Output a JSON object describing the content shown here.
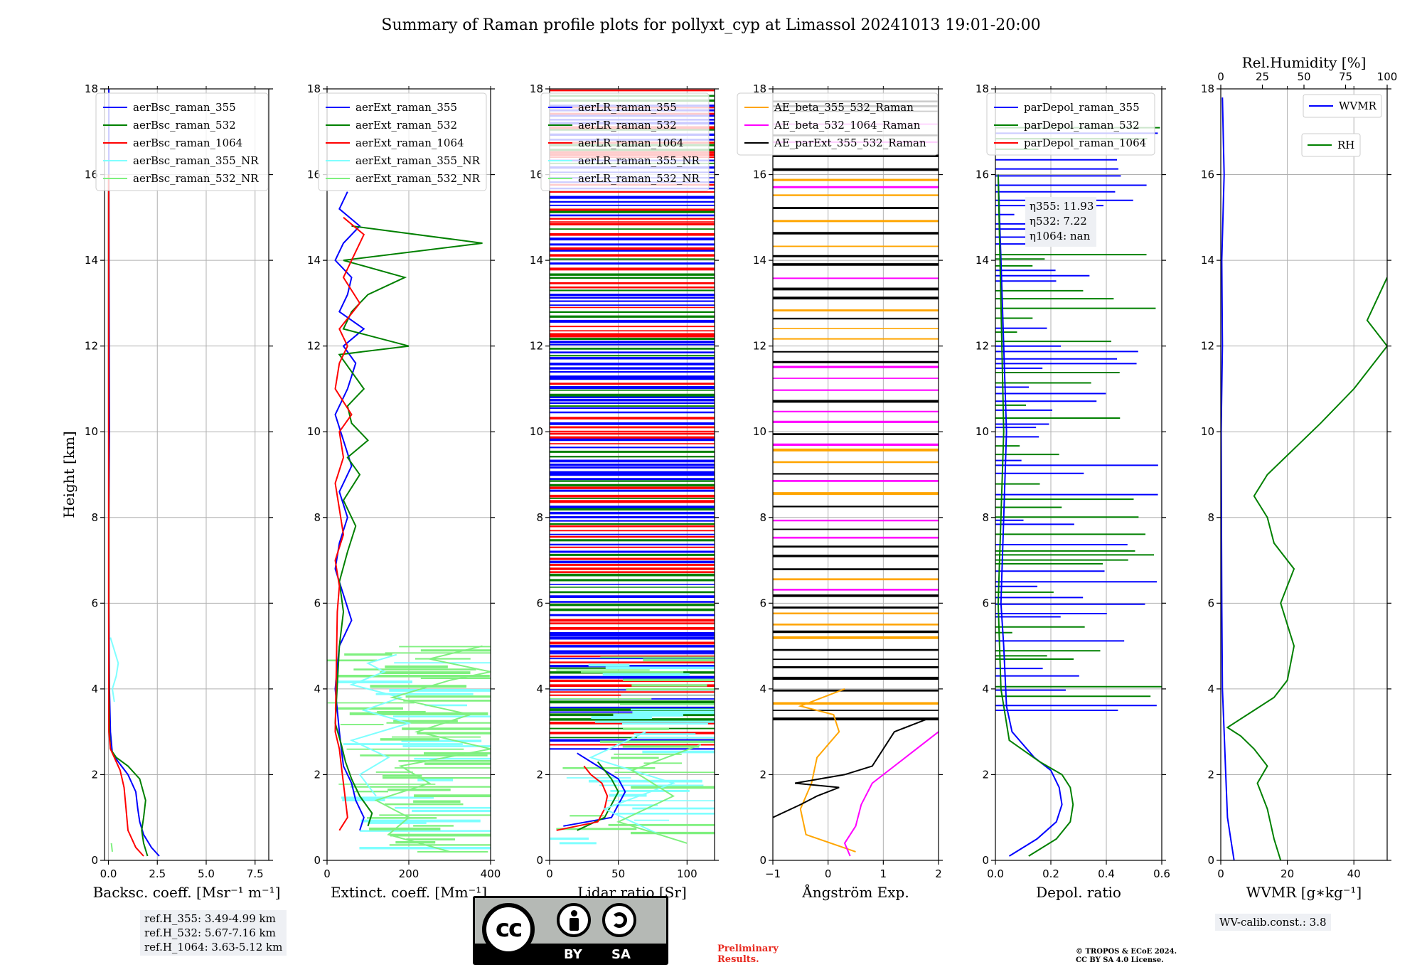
{
  "figure_title": "Summary of Raman profile plots for pollyxt_cyp at Limassol 20241013 19:01-20:00",
  "ref_heights": [
    "ref.H_355: 3.49-4.99 km",
    "ref.H_532: 5.67-7.16 km",
    "ref.H_1064: 3.63-5.12 km"
  ],
  "wv_calib": "WV-calib.const.: 3.8",
  "preliminary": [
    "Preliminary",
    "Results."
  ],
  "copyright": [
    "© TROPOS & ECoE 2024.",
    "CC BY SA 4.0 License."
  ],
  "license_badge": {
    "cc": "cc",
    "by": "BY",
    "sa": "SA"
  },
  "colors": {
    "blue": "#0000ff",
    "green": "#008000",
    "red": "#ff0000",
    "cyan": "#7fffff",
    "lightgreen": "#7ff07f",
    "orange": "#ffa500",
    "magenta": "#ff00ff",
    "black": "#000000"
  },
  "chart_data": [
    {
      "type": "line",
      "id": "bsc",
      "xlabel": "Backsc. coeff. [Msr$^{-1}$ m$^{-1}$]",
      "xlabel_text": "Backsc. coeff. [Msr⁻¹ m⁻¹]",
      "ylabel": "Height [km]",
      "xlim": [
        -0.2,
        8.2
      ],
      "ylim": [
        0,
        18
      ],
      "xticks": [
        0,
        2.5,
        5,
        7.5
      ],
      "xticklabels": [
        "0.0",
        "2.5",
        "5.0",
        "7.5"
      ],
      "yticks": [
        0,
        2,
        4,
        6,
        8,
        10,
        12,
        14,
        16,
        18
      ],
      "legend": "top-left",
      "series": [
        {
          "name": "aerBsc_raman_355",
          "color": "#0000ff",
          "x": [
            2.6,
            2.2,
            1.8,
            1.6,
            1.5,
            1.4,
            1.0,
            0.5,
            0.2,
            0.1,
            0.05,
            0.02,
            0.02,
            0.05,
            0.04,
            0.03,
            0.02,
            0.02
          ],
          "y": [
            0.1,
            0.3,
            0.6,
            0.9,
            1.2,
            1.6,
            2.0,
            2.3,
            2.5,
            3.0,
            4.0,
            6.0,
            8.0,
            10.0,
            12.0,
            14.0,
            16.0,
            18.0
          ]
        },
        {
          "name": "aerBsc_raman_532",
          "color": "#008000",
          "x": [
            2.0,
            1.8,
            1.7,
            1.8,
            1.9,
            1.6,
            1.0,
            0.4,
            0.1,
            0.05,
            0.02,
            0.02,
            0.01,
            0.01
          ],
          "y": [
            0.1,
            0.4,
            0.7,
            1.0,
            1.4,
            1.9,
            2.2,
            2.4,
            2.6,
            3.0,
            5.0,
            8.0,
            12.0,
            16.0
          ]
        },
        {
          "name": "aerBsc_raman_1064",
          "color": "#ff0000",
          "x": [
            1.8,
            1.4,
            1.0,
            0.9,
            0.8,
            0.6,
            0.3,
            0.1,
            0.02,
            0.01,
            0.01
          ],
          "y": [
            0.1,
            0.3,
            0.7,
            1.2,
            1.7,
            2.1,
            2.4,
            2.6,
            3.0,
            6.0,
            16.0
          ]
        },
        {
          "name": "aerBsc_raman_355_NR",
          "color": "#7fffff",
          "x": [
            0.3,
            0.2,
            0.4,
            0.5,
            0.3,
            0.1
          ],
          "y": [
            3.7,
            4.0,
            4.3,
            4.6,
            4.9,
            5.2
          ]
        },
        {
          "name": "aerBsc_raman_532_NR",
          "color": "#7ff07f",
          "x": [
            0.2,
            0.15
          ],
          "y": [
            0.2,
            0.4
          ]
        }
      ]
    },
    {
      "type": "line",
      "id": "ext",
      "xlabel_text": "Extinct. coeff. [Mm⁻¹]",
      "xlim": [
        0,
        400
      ],
      "ylim": [
        0,
        18
      ],
      "xticks": [
        0,
        200,
        400
      ],
      "xticklabels": [
        "0",
        "200",
        "400"
      ],
      "yticks": [
        0,
        2,
        4,
        6,
        8,
        10,
        12,
        14,
        16,
        18
      ],
      "legend": "top-left",
      "series": [
        {
          "name": "aerExt_raman_355",
          "color": "#0000ff",
          "x": [
            80,
            90,
            70,
            60,
            40,
            35,
            30,
            20,
            30,
            60,
            40,
            20,
            30,
            50,
            30,
            60,
            40,
            20,
            50,
            70,
            40,
            90,
            30,
            50,
            60,
            20,
            40,
            80,
            30,
            50
          ],
          "y": [
            0.7,
            1.0,
            1.4,
            1.8,
            2.2,
            2.6,
            3.0,
            4.0,
            5.0,
            5.6,
            6.2,
            6.8,
            7.4,
            8.0,
            8.6,
            9.2,
            9.8,
            10.4,
            11.0,
            11.6,
            12.0,
            12.4,
            12.8,
            13.2,
            13.6,
            14.0,
            14.4,
            14.8,
            15.2,
            15.6
          ]
        },
        {
          "name": "aerExt_raman_532",
          "color": "#008000",
          "x": [
            100,
            110,
            80,
            60,
            45,
            35,
            20,
            30,
            40,
            30,
            50,
            70,
            40,
            80,
            50,
            100,
            60,
            50,
            90,
            60,
            30,
            200,
            40,
            60,
            100,
            190,
            40,
            380,
            60
          ],
          "y": [
            0.8,
            1.1,
            1.5,
            1.9,
            2.3,
            2.7,
            3.2,
            5.0,
            5.8,
            6.5,
            7.2,
            7.8,
            8.4,
            9.0,
            9.4,
            9.8,
            10.2,
            10.6,
            11.0,
            11.4,
            11.8,
            12.0,
            12.4,
            12.8,
            13.2,
            13.6,
            14.0,
            14.4,
            14.8
          ]
        },
        {
          "name": "aerExt_raman_1064",
          "color": "#ff0000",
          "x": [
            30,
            50,
            45,
            40,
            35,
            30,
            20,
            25,
            30,
            20,
            40,
            30,
            20,
            40,
            30,
            60,
            20,
            30,
            50,
            30,
            80,
            40,
            60,
            90,
            40
          ],
          "y": [
            0.7,
            1.0,
            1.4,
            1.8,
            2.2,
            2.6,
            3.0,
            5.8,
            6.4,
            7.0,
            7.6,
            8.2,
            8.8,
            9.4,
            10.0,
            10.4,
            11.0,
            11.6,
            12.0,
            12.4,
            13.0,
            13.6,
            14.0,
            14.6,
            15.0
          ]
        },
        {
          "name": "aerExt_raman_355_NR",
          "color": "#7fffff",
          "x": [
            120,
            80,
            150,
            60,
            200,
            90,
            180,
            60,
            140,
            100,
            170
          ],
          "y": [
            1.5,
            2.0,
            2.4,
            2.8,
            3.2,
            3.5,
            3.8,
            4.1,
            4.4,
            4.6,
            4.8
          ]
        },
        {
          "name": "aerExt_raman_532_NR",
          "color": "#7ff07f",
          "x": [
            300,
            150,
            200,
            120,
            250,
            180,
            400,
            220,
            350,
            160,
            300,
            400,
            250,
            380
          ],
          "y": [
            0.2,
            0.6,
            1.0,
            1.4,
            1.8,
            2.2,
            2.6,
            3.0,
            3.4,
            3.8,
            4.2,
            4.4,
            4.7,
            5.0
          ]
        }
      ]
    },
    {
      "type": "line",
      "id": "lr",
      "xlabel_text": "Lidar ratio [Sr]",
      "xlim": [
        0,
        120
      ],
      "ylim": [
        0,
        18
      ],
      "xticks": [
        0,
        50,
        100
      ],
      "xticklabels": [
        "0",
        "50",
        "100"
      ],
      "yticks": [
        0,
        2,
        4,
        6,
        8,
        10,
        12,
        14,
        16,
        18
      ],
      "legend": "top-left",
      "series": [
        {
          "name": "aerLR_raman_355",
          "color": "#0000ff",
          "x": [
            10,
            45,
            50,
            55,
            50,
            40,
            30,
            20
          ],
          "y": [
            0.8,
            1.0,
            1.3,
            1.6,
            1.9,
            2.1,
            2.3,
            2.5
          ]
        },
        {
          "name": "aerLR_raman_532",
          "color": "#008000",
          "x": [
            20,
            40,
            45,
            50,
            45,
            40,
            35
          ],
          "y": [
            0.7,
            1.0,
            1.3,
            1.6,
            1.9,
            2.1,
            2.3
          ]
        },
        {
          "name": "aerLR_raman_1064",
          "color": "#ff0000",
          "x": [
            5,
            35,
            40,
            42,
            38,
            30,
            25
          ],
          "y": [
            0.7,
            0.9,
            1.2,
            1.5,
            1.8,
            2.0,
            2.2
          ]
        },
        {
          "name": "aerLR_raman_355_NR",
          "color": "#7fffff",
          "x": [
            80,
            40,
            90,
            30,
            70
          ],
          "y": [
            0.6,
            1.2,
            1.8,
            2.4,
            3.0
          ]
        },
        {
          "name": "aerLR_raman_532_NR",
          "color": "#7ff07f",
          "x": [
            100,
            50,
            90,
            60,
            110
          ],
          "y": [
            0.4,
            0.9,
            1.5,
            2.1,
            2.7
          ]
        }
      ],
      "fill_lines": {
        "note": "dense full-width horizontal segments from 2.5 to 18 km in blue/red/green"
      }
    },
    {
      "type": "line",
      "id": "ae",
      "xlabel_text": "Ångström Exp.",
      "xlim": [
        -1,
        2
      ],
      "ylim": [
        0,
        18
      ],
      "xticks": [
        -1,
        0,
        1,
        2
      ],
      "xticklabels": [
        "−1",
        "0",
        "1",
        "2"
      ],
      "yticks": [
        0,
        2,
        4,
        6,
        8,
        10,
        12,
        14,
        16,
        18
      ],
      "legend": "top-center",
      "series": [
        {
          "name": "AE_beta_355_532_Raman",
          "color": "#ffa500",
          "x": [
            0.5,
            -0.4,
            -0.5,
            -0.3,
            -0.2,
            0.2,
            0.1,
            -0.5,
            0.3
          ],
          "y": [
            0.2,
            0.6,
            1.2,
            1.8,
            2.4,
            3.0,
            3.4,
            3.6,
            4.0
          ]
        },
        {
          "name": "AE_beta_532_1064_Raman",
          "color": "#ff00ff",
          "x": [
            0.4,
            0.3,
            0.5,
            0.6,
            0.8,
            1.5,
            2.0
          ],
          "y": [
            0.1,
            0.4,
            0.8,
            1.3,
            1.8,
            2.5,
            3.0
          ]
        },
        {
          "name": "AE_parExt_355_532_Raman",
          "color": "#000000",
          "x": [
            -1.0,
            -0.5,
            -0.2,
            0.2,
            -0.6,
            0.3,
            0.8,
            1.2,
            1.8
          ],
          "y": [
            1.0,
            1.3,
            1.5,
            1.7,
            1.8,
            2.0,
            2.2,
            3.0,
            3.3
          ]
        }
      ],
      "fill_lines": {
        "note": "horizontal segments across full range between 3.3 and 18 km in black/orange/magenta"
      }
    },
    {
      "type": "line",
      "id": "dep",
      "xlabel_text": "Depol. ratio",
      "xlim": [
        0,
        0.6
      ],
      "ylim": [
        0,
        18
      ],
      "xticks": [
        0,
        0.2,
        0.4,
        0.6
      ],
      "xticklabels": [
        "0.0",
        "0.2",
        "0.4",
        "0.6"
      ],
      "yticks": [
        0,
        2,
        4,
        6,
        8,
        10,
        12,
        14,
        16,
        18
      ],
      "legend": "top-left",
      "annotation": [
        "η355: 11.93",
        "η532: 7.22",
        "η1064: nan"
      ],
      "series": [
        {
          "name": "parDepol_raman_355",
          "color": "#0000ff",
          "x": [
            0.05,
            0.15,
            0.22,
            0.24,
            0.23,
            0.2,
            0.14,
            0.06,
            0.04,
            0.03,
            0.02,
            0.03,
            0.04,
            0.03,
            0.02,
            0.01
          ],
          "y": [
            0.1,
            0.5,
            0.9,
            1.3,
            1.7,
            2.1,
            2.4,
            3.0,
            3.6,
            5.0,
            6.0,
            8.0,
            10.0,
            12.0,
            14.0,
            16.0
          ]
        },
        {
          "name": "parDepol_raman_532",
          "color": "#008000",
          "x": [
            0.12,
            0.22,
            0.27,
            0.28,
            0.27,
            0.24,
            0.16,
            0.05,
            0.02,
            0.01,
            0.02,
            0.03,
            0.02,
            0.01
          ],
          "y": [
            0.1,
            0.5,
            0.9,
            1.3,
            1.7,
            2.0,
            2.3,
            2.8,
            4.0,
            6.0,
            8.0,
            10.0,
            13.0,
            16.0
          ]
        },
        {
          "name": "parDepol_raman_1064",
          "color": "#ff0000",
          "x": [],
          "y": []
        }
      ]
    },
    {
      "type": "line",
      "id": "wv",
      "xlabel_text": "WVMR [g∗kg⁻¹]",
      "top_xlabel": "Rel.Humidity [%]",
      "xlim": [
        0,
        50
      ],
      "ylim": [
        0,
        18
      ],
      "xticks": [
        0,
        20,
        40
      ],
      "xticklabels": [
        "0",
        "20",
        "40"
      ],
      "top_xlim": [
        0,
        100
      ],
      "top_xticks": [
        0,
        25,
        50,
        75,
        100
      ],
      "yticks": [
        0,
        2,
        4,
        6,
        8,
        10,
        12,
        14,
        16,
        18
      ],
      "legend": "top-right",
      "series": [
        {
          "name": "WVMR",
          "color": "#0000ff",
          "x": [
            4,
            3,
            2,
            1.5,
            1.0,
            0.5,
            0.3,
            0.2,
            0.1,
            0.5,
            0.3,
            1,
            0.5
          ],
          "y": [
            0,
            0.5,
            1.0,
            2.0,
            3.0,
            4.0,
            6.0,
            8.0,
            10.0,
            12.0,
            14.0,
            16.0,
            17.8
          ]
        },
        {
          "name": "RH",
          "color": "#008000",
          "x": [
            18,
            16,
            14,
            11,
            14,
            10,
            6,
            2,
            10,
            16,
            20,
            22,
            18,
            22,
            16,
            14,
            10,
            14,
            22,
            30,
            40,
            50,
            44,
            50
          ],
          "y": [
            0,
            0.5,
            1.2,
            1.8,
            2.2,
            2.6,
            2.9,
            3.1,
            3.5,
            3.8,
            4.2,
            5.0,
            6.0,
            6.8,
            7.4,
            8.0,
            8.5,
            9.0,
            9.6,
            10.2,
            11.0,
            12.0,
            12.6,
            13.6
          ]
        }
      ]
    }
  ]
}
